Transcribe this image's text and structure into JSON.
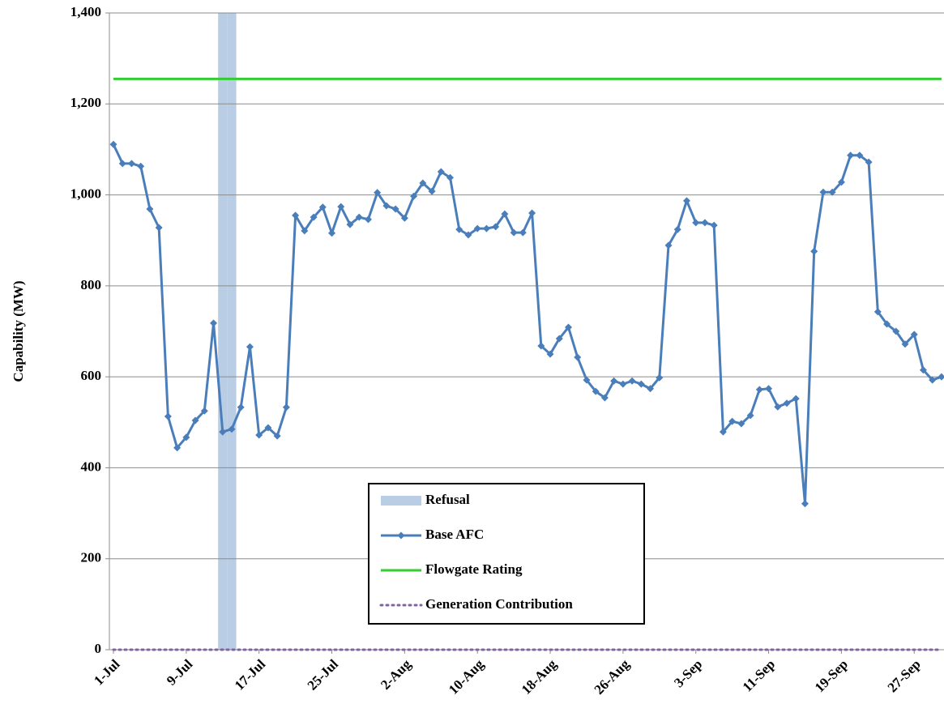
{
  "chart_data": {
    "type": "line",
    "y_label": "Capability (MW)",
    "categories": [
      "1-Jul",
      null,
      null,
      null,
      null,
      null,
      null,
      null,
      "9-Jul",
      null,
      null,
      null,
      null,
      null,
      null,
      null,
      "17-Jul",
      null,
      null,
      null,
      null,
      null,
      null,
      null,
      "25-Jul",
      null,
      null,
      null,
      null,
      null,
      null,
      null,
      "2-Aug",
      null,
      null,
      null,
      null,
      null,
      null,
      null,
      "10-Aug",
      null,
      null,
      null,
      null,
      null,
      null,
      null,
      "18-Aug",
      null,
      null,
      null,
      null,
      null,
      null,
      null,
      "26-Aug",
      null,
      null,
      null,
      null,
      null,
      null,
      null,
      "3-Sep",
      null,
      null,
      null,
      null,
      null,
      null,
      null,
      "11-Sep",
      null,
      null,
      null,
      null,
      null,
      null,
      null,
      "19-Sep",
      null,
      null,
      null,
      null,
      null,
      null,
      null,
      "27-Sep",
      null,
      null,
      null
    ],
    "ylim": [
      0,
      1400
    ],
    "yticks": [
      0,
      200,
      400,
      600,
      800,
      {
        "value": 1000,
        "label": "1,000"
      },
      {
        "value": 1200,
        "label": "1,200"
      },
      {
        "value": 1400,
        "label": "1,400"
      }
    ],
    "grid": true,
    "legend": "lower center",
    "series": [
      {
        "name": "Refusal",
        "type": "bar",
        "color": "#b9cde5",
        "values": [
          null,
          null,
          null,
          null,
          null,
          null,
          null,
          null,
          null,
          null,
          null,
          null,
          1400,
          1400,
          null,
          null,
          null,
          null,
          null,
          null,
          null,
          null,
          null,
          null,
          null,
          null,
          null,
          null,
          null,
          null,
          null,
          null,
          null,
          null,
          null,
          null,
          null,
          null,
          null,
          null,
          null,
          null,
          null,
          null,
          null,
          null,
          null,
          null,
          null,
          null,
          null,
          null,
          null,
          null,
          null,
          null,
          null,
          null,
          null,
          null,
          null,
          null,
          null,
          null,
          null,
          null,
          null,
          null,
          null,
          null,
          null,
          null,
          null,
          null,
          null,
          null,
          null,
          null,
          null,
          null,
          null,
          null,
          null,
          null,
          null,
          null,
          null,
          null,
          null,
          null,
          null,
          null
        ]
      },
      {
        "name": "Base AFC",
        "type": "line",
        "color": "#4a7ebb",
        "marker": "diamond",
        "values": [
          1111,
          1069,
          1069,
          1063,
          969,
          928,
          513,
          444,
          467,
          504,
          525,
          718,
          479,
          485,
          533,
          666,
          472,
          488,
          470,
          533,
          955,
          921,
          951,
          973,
          916,
          974,
          935,
          951,
          946,
          1005,
          976,
          969,
          949,
          997,
          1026,
          1008,
          1051,
          1038,
          924,
          912,
          926,
          926,
          930,
          958,
          917,
          917,
          960,
          668,
          650,
          684,
          709,
          643,
          593,
          568,
          554,
          591,
          584,
          591,
          584,
          574,
          598,
          889,
          924,
          987,
          939,
          939,
          933,
          479,
          502,
          497,
          515,
          572,
          574,
          534,
          542,
          552,
          321,
          876,
          1006,
          1006,
          1028,
          1087,
          1087,
          1072,
          743,
          716,
          700,
          672,
          693,
          615,
          593,
          600
        ]
      },
      {
        "name": "Flowgate Rating",
        "type": "line",
        "color": "#33cc33",
        "values": [
          1255,
          1255,
          1255,
          1255,
          1255,
          1255,
          1255,
          1255,
          1255,
          1255,
          1255,
          1255,
          1255,
          1255,
          1255,
          1255,
          1255,
          1255,
          1255,
          1255,
          1255,
          1255,
          1255,
          1255,
          1255,
          1255,
          1255,
          1255,
          1255,
          1255,
          1255,
          1255,
          1255,
          1255,
          1255,
          1255,
          1255,
          1255,
          1255,
          1255,
          1255,
          1255,
          1255,
          1255,
          1255,
          1255,
          1255,
          1255,
          1255,
          1255,
          1255,
          1255,
          1255,
          1255,
          1255,
          1255,
          1255,
          1255,
          1255,
          1255,
          1255,
          1255,
          1255,
          1255,
          1255,
          1255,
          1255,
          1255,
          1255,
          1255,
          1255,
          1255,
          1255,
          1255,
          1255,
          1255,
          1255,
          1255,
          1255,
          1255,
          1255,
          1255,
          1255,
          1255,
          1255,
          1255,
          1255,
          1255,
          1255,
          1255,
          1255,
          1255
        ]
      },
      {
        "name": "Generation Contribution",
        "type": "line",
        "color": "#8064a2",
        "line_style": "dotted",
        "values": [
          0,
          0,
          0,
          0,
          0,
          0,
          0,
          0,
          0,
          0,
          0,
          0,
          0,
          0,
          0,
          0,
          0,
          0,
          0,
          0,
          0,
          0,
          0,
          0,
          0,
          0,
          0,
          0,
          0,
          0,
          0,
          0,
          0,
          0,
          0,
          0,
          0,
          0,
          0,
          0,
          0,
          0,
          0,
          0,
          0,
          0,
          0,
          0,
          0,
          0,
          0,
          0,
          0,
          0,
          0,
          0,
          0,
          0,
          0,
          0,
          0,
          0,
          0,
          0,
          0,
          0,
          0,
          0,
          0,
          0,
          0,
          0,
          0,
          0,
          0,
          0,
          0,
          0,
          0,
          0,
          0,
          0,
          0,
          0,
          0,
          0,
          0,
          0,
          0,
          0,
          0,
          0
        ]
      }
    ]
  }
}
